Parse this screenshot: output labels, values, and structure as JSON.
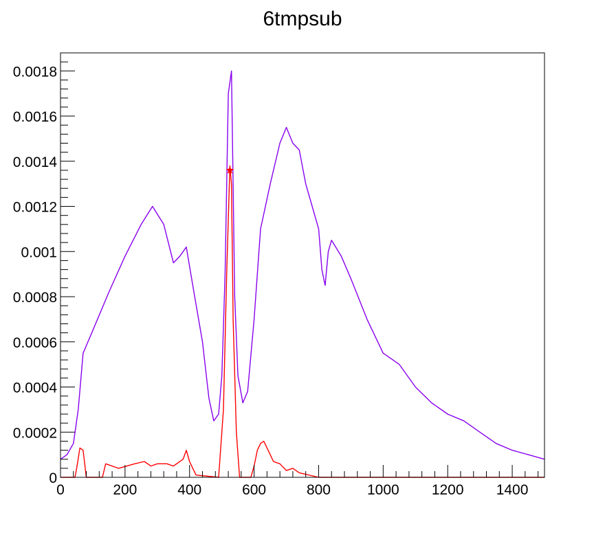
{
  "chart_data": {
    "type": "line",
    "title": "6tmpsub",
    "xlabel": "",
    "ylabel": "",
    "xlim": [
      0,
      1500
    ],
    "ylim": [
      0,
      0.00188
    ],
    "grid": false,
    "legend": "none",
    "x_tick_labels": [
      "0",
      "200",
      "400",
      "600",
      "800",
      "1000",
      "1200",
      "1400"
    ],
    "x_ticks": [
      0,
      200,
      400,
      600,
      800,
      1000,
      1200,
      1400
    ],
    "y_tick_labels": [
      "0",
      "0.0002",
      "0.0004",
      "0.0006",
      "0.0008",
      "0.001",
      "0.0012",
      "0.0014",
      "0.0016",
      "0.0018"
    ],
    "y_ticks": [
      0,
      0.0002,
      0.0004,
      0.0006,
      0.0008,
      0.001,
      0.0012,
      0.0014,
      0.0016,
      0.0018
    ],
    "series": [
      {
        "color": "#8800ee",
        "x": [
          0,
          20,
          40,
          55,
          70,
          100,
          150,
          200,
          250,
          285,
          320,
          350,
          370,
          390,
          410,
          440,
          460,
          475,
          490,
          500,
          510,
          520,
          530,
          540,
          550,
          565,
          580,
          600,
          620,
          650,
          680,
          700,
          720,
          740,
          760,
          780,
          800,
          810,
          820,
          830,
          840,
          870,
          900,
          950,
          1000,
          1050,
          1100,
          1150,
          1200,
          1250,
          1300,
          1350,
          1400,
          1450,
          1500
        ],
        "y": [
          8e-05,
          0.0001,
          0.00015,
          0.0003,
          0.00055,
          0.00065,
          0.00082,
          0.00098,
          0.00112,
          0.0012,
          0.00112,
          0.00095,
          0.00098,
          0.00102,
          0.00085,
          0.0006,
          0.00035,
          0.00025,
          0.00028,
          0.00045,
          0.0009,
          0.0017,
          0.0018,
          0.0008,
          0.00045,
          0.00033,
          0.00038,
          0.0007,
          0.0011,
          0.0013,
          0.00148,
          0.00155,
          0.00148,
          0.00145,
          0.0013,
          0.0012,
          0.0011,
          0.00092,
          0.00085,
          0.001,
          0.00105,
          0.00098,
          0.00088,
          0.0007,
          0.00055,
          0.0005,
          0.0004,
          0.00033,
          0.00028,
          0.00025,
          0.0002,
          0.00015,
          0.00012,
          0.0001,
          8e-05
        ]
      },
      {
        "color": "#ff0000",
        "x": [
          0,
          45,
          50,
          60,
          70,
          75,
          80,
          130,
          140,
          180,
          230,
          260,
          280,
          300,
          330,
          350,
          380,
          390,
          400,
          410,
          420,
          490,
          505,
          515,
          525,
          530,
          535,
          545,
          555,
          590,
          600,
          610,
          620,
          630,
          640,
          650,
          660,
          680,
          700,
          720,
          740,
          800,
          1500
        ],
        "y": [
          0,
          0,
          4e-05,
          0.00013,
          0.00012,
          6e-05,
          0,
          0,
          6e-05,
          4e-05,
          6e-05,
          7e-05,
          5e-05,
          6e-05,
          6e-05,
          5e-05,
          8e-05,
          0.00012,
          7e-05,
          4e-05,
          1e-05,
          0,
          0.0003,
          0.0009,
          0.00138,
          0.0013,
          0.0007,
          0.0002,
          0,
          0,
          5e-05,
          0.00012,
          0.00015,
          0.00016,
          0.00013,
          0.0001,
          7e-05,
          6e-05,
          3e-05,
          4e-05,
          2e-05,
          0,
          0
        ]
      }
    ],
    "annotations": [
      {
        "type": "star-marker",
        "color": "#ff0000",
        "x": 525,
        "y": 0.00136
      }
    ]
  }
}
